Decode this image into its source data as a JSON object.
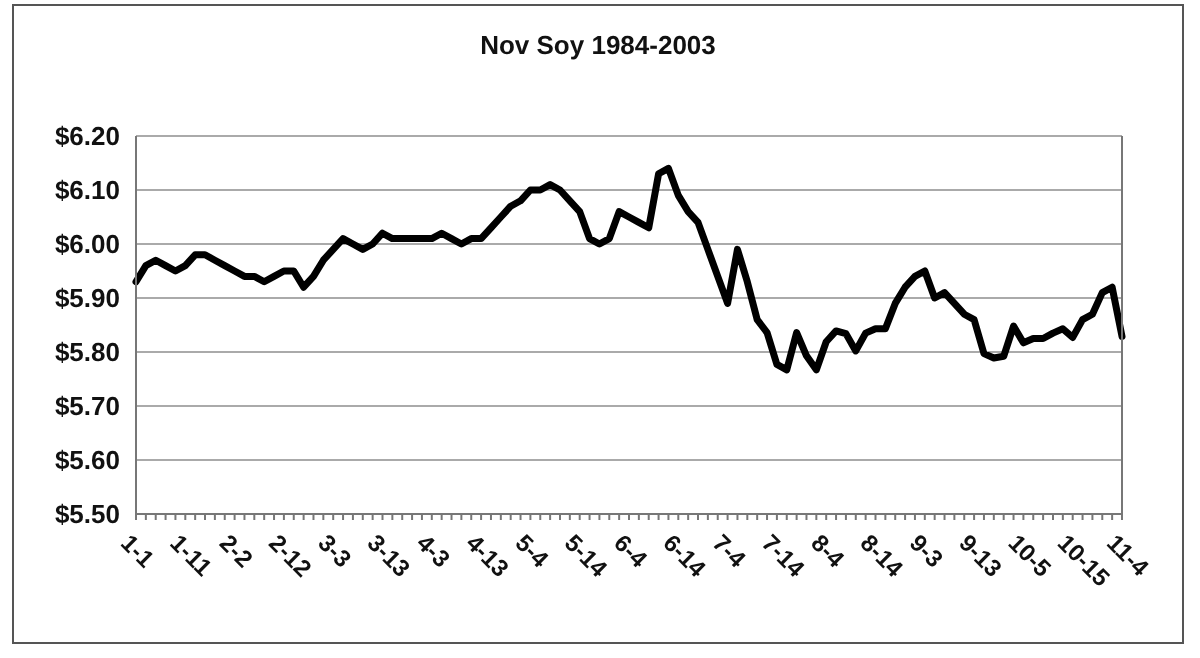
{
  "chart_data": {
    "type": "line",
    "title": "Nov Soy 1984-2003",
    "categories": [
      "1-1",
      null,
      null,
      null,
      null,
      "1-11",
      null,
      null,
      null,
      null,
      "2-2",
      null,
      null,
      null,
      null,
      "2-12",
      null,
      null,
      null,
      null,
      "3-3",
      null,
      null,
      null,
      null,
      "3-13",
      null,
      null,
      null,
      null,
      "4-3",
      null,
      null,
      null,
      null,
      "4-13",
      null,
      null,
      null,
      null,
      "5-4",
      null,
      null,
      null,
      null,
      "5-14",
      null,
      null,
      null,
      null,
      "6-4",
      null,
      null,
      null,
      null,
      "6-14",
      null,
      null,
      null,
      null,
      "7-4",
      null,
      null,
      null,
      null,
      "7-14",
      null,
      null,
      null,
      null,
      "8-4",
      null,
      null,
      null,
      null,
      "8-14",
      null,
      null,
      null,
      null,
      "9-3",
      null,
      null,
      null,
      null,
      "9-13",
      null,
      null,
      null,
      null,
      "10-5",
      null,
      null,
      null,
      null,
      "10-15",
      null,
      null,
      null,
      null,
      "11-4"
    ],
    "series": [
      {
        "color": "#000000",
        "values": [
          5.93,
          5.96,
          5.97,
          5.96,
          5.95,
          5.96,
          5.98,
          5.98,
          5.97,
          5.96,
          5.95,
          5.94,
          5.94,
          5.93,
          5.94,
          5.95,
          5.95,
          5.92,
          5.94,
          5.97,
          5.99,
          6.01,
          6.0,
          5.99,
          6.0,
          6.02,
          6.01,
          6.01,
          6.01,
          6.01,
          6.01,
          6.02,
          6.01,
          6.0,
          6.01,
          6.01,
          6.03,
          6.05,
          6.07,
          6.08,
          6.1,
          6.1,
          6.11,
          6.1,
          6.08,
          6.06,
          6.01,
          6.0,
          6.01,
          6.06,
          6.05,
          6.04,
          6.03,
          6.13,
          6.14,
          6.09,
          6.06,
          6.04,
          5.99,
          5.94,
          5.89,
          5.99,
          5.93,
          5.86,
          5.836,
          5.777,
          5.767,
          5.836,
          5.793,
          5.767,
          5.819,
          5.839,
          5.834,
          5.802,
          5.835,
          5.843,
          5.843,
          5.89,
          5.92,
          5.94,
          5.95,
          5.9,
          5.91,
          5.89,
          5.87,
          5.86,
          5.797,
          5.789,
          5.792,
          5.848,
          5.817,
          5.825,
          5.825,
          5.835,
          5.843,
          5.827,
          5.86,
          5.87,
          5.91,
          5.92,
          5.829
        ]
      }
    ],
    "ylim": [
      5.5,
      6.2
    ],
    "yticks": [
      {
        "value": 5.5,
        "label": "$5.50"
      },
      {
        "value": 5.6,
        "label": "$5.60"
      },
      {
        "value": 5.7,
        "label": "$5.70"
      },
      {
        "value": 5.8,
        "label": "$5.80"
      },
      {
        "value": 5.9,
        "label": "$5.90"
      },
      {
        "value": 6.0,
        "label": "$6.00"
      },
      {
        "value": 6.1,
        "label": "$6.10"
      },
      {
        "value": 6.2,
        "label": "$6.20"
      }
    ],
    "grid": "y",
    "legend": false,
    "marker": "none",
    "line_style": "solid"
  }
}
